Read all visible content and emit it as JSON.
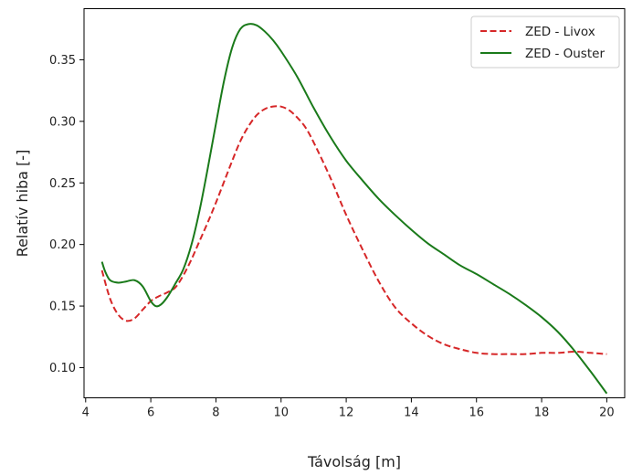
{
  "chart_data": {
    "type": "line",
    "title": "",
    "xlabel": "Távolság [m]",
    "ylabel": "Relatív hiba [-]",
    "xlim": [
      3.95,
      20.55
    ],
    "ylim": [
      0.0755,
      0.3915
    ],
    "xticks": [
      4,
      6,
      8,
      10,
      12,
      14,
      16,
      18,
      20
    ],
    "yticks": [
      0.1,
      0.15,
      0.2,
      0.25,
      0.3,
      0.35
    ],
    "xtick_labels": [
      "4",
      "6",
      "8",
      "10",
      "12",
      "14",
      "16",
      "18",
      "20"
    ],
    "ytick_labels": [
      "0.10",
      "0.15",
      "0.20",
      "0.25",
      "0.30",
      "0.35"
    ],
    "grid": false,
    "legend": "top-right",
    "series": [
      {
        "name": "ZED - Livox",
        "color": "#d62728",
        "style": "dashed",
        "x": [
          4.5,
          4.75,
          5.0,
          5.25,
          5.5,
          5.75,
          6.0,
          6.25,
          6.5,
          6.75,
          7.0,
          7.25,
          7.5,
          7.75,
          8.0,
          8.25,
          8.5,
          8.75,
          9.0,
          9.25,
          9.5,
          9.75,
          10.0,
          10.25,
          10.5,
          10.75,
          11.0,
          11.5,
          12.0,
          12.5,
          13.0,
          13.5,
          14.0,
          14.5,
          15.0,
          15.5,
          16.0,
          16.5,
          17.0,
          17.5,
          18.0,
          18.5,
          19.0,
          19.5,
          20.0
        ],
        "y": [
          0.179,
          0.156,
          0.143,
          0.138,
          0.14,
          0.147,
          0.154,
          0.158,
          0.161,
          0.165,
          0.175,
          0.188,
          0.203,
          0.218,
          0.234,
          0.251,
          0.268,
          0.284,
          0.296,
          0.305,
          0.31,
          0.312,
          0.312,
          0.309,
          0.303,
          0.295,
          0.283,
          0.255,
          0.224,
          0.196,
          0.17,
          0.149,
          0.136,
          0.126,
          0.119,
          0.115,
          0.112,
          0.111,
          0.111,
          0.111,
          0.112,
          0.112,
          0.113,
          0.112,
          0.111
        ]
      },
      {
        "name": "ZED - Ouster",
        "color": "#1a7a1a",
        "style": "solid",
        "x": [
          4.5,
          4.6,
          4.75,
          5.0,
          5.25,
          5.5,
          5.75,
          6.0,
          6.15,
          6.3,
          6.5,
          6.75,
          7.0,
          7.25,
          7.5,
          7.75,
          8.0,
          8.25,
          8.5,
          8.75,
          9.0,
          9.25,
          9.5,
          9.75,
          10.0,
          10.5,
          11.0,
          11.5,
          12.0,
          12.5,
          13.0,
          13.5,
          14.0,
          14.5,
          15.0,
          15.5,
          16.0,
          16.5,
          17.0,
          17.5,
          18.0,
          18.5,
          19.0,
          19.5,
          20.0
        ],
        "y": [
          0.186,
          0.178,
          0.171,
          0.169,
          0.17,
          0.171,
          0.166,
          0.154,
          0.15,
          0.151,
          0.157,
          0.168,
          0.18,
          0.2,
          0.228,
          0.262,
          0.298,
          0.333,
          0.36,
          0.375,
          0.379,
          0.378,
          0.373,
          0.366,
          0.357,
          0.336,
          0.311,
          0.288,
          0.268,
          0.252,
          0.237,
          0.224,
          0.212,
          0.201,
          0.192,
          0.183,
          0.176,
          0.168,
          0.16,
          0.151,
          0.141,
          0.129,
          0.114,
          0.097,
          0.079
        ]
      }
    ]
  }
}
